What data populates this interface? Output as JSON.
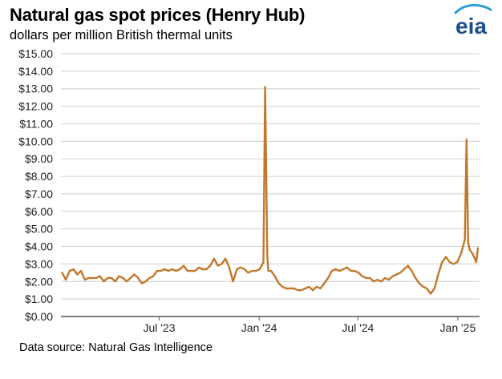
{
  "header": {
    "title": "Natural gas spot prices (Henry Hub)",
    "subtitle": "dollars per million British thermal units",
    "logo_text": "eia"
  },
  "footer": {
    "source": "Data source: Natural Gas Intelligence"
  },
  "colors": {
    "series": "#c1782a",
    "grid": "#cfcfcf",
    "logo_text": "#1a4f8a",
    "logo_swoosh": "#2d9fd8"
  },
  "chart_data": {
    "type": "line",
    "title": "Natural gas spot prices (Henry Hub)",
    "subtitle": "dollars per million British thermal units",
    "xlabel": "",
    "ylabel": "",
    "ylim": [
      0,
      15
    ],
    "xlim": [
      "2023-01-01",
      "2025-02-10"
    ],
    "grid": true,
    "legend": "none",
    "y_ticks": [
      "$0.00",
      "$1.00",
      "$2.00",
      "$3.00",
      "$4.00",
      "$5.00",
      "$6.00",
      "$7.00",
      "$8.00",
      "$9.00",
      "$10.00",
      "$11.00",
      "$12.00",
      "$13.00",
      "$14.00",
      "$15.00"
    ],
    "x_ticks": [
      {
        "date": "2023-07-01",
        "label": "Jul '23"
      },
      {
        "date": "2024-01-01",
        "label": "Jan '24"
      },
      {
        "date": "2024-07-01",
        "label": "Jul '24"
      },
      {
        "date": "2025-01-01",
        "label": "Jan '25"
      }
    ],
    "series": [
      {
        "name": "",
        "x": [
          "2023-01-03",
          "2023-01-10",
          "2023-01-17",
          "2023-01-24",
          "2023-01-31",
          "2023-02-07",
          "2023-02-14",
          "2023-02-21",
          "2023-02-28",
          "2023-03-07",
          "2023-03-14",
          "2023-03-21",
          "2023-03-28",
          "2023-04-04",
          "2023-04-11",
          "2023-04-18",
          "2023-04-25",
          "2023-05-02",
          "2023-05-09",
          "2023-05-16",
          "2023-05-23",
          "2023-05-30",
          "2023-06-06",
          "2023-06-13",
          "2023-06-20",
          "2023-06-27",
          "2023-07-04",
          "2023-07-11",
          "2023-07-18",
          "2023-07-25",
          "2023-08-01",
          "2023-08-08",
          "2023-08-15",
          "2023-08-22",
          "2023-08-29",
          "2023-09-05",
          "2023-09-12",
          "2023-09-19",
          "2023-09-26",
          "2023-10-03",
          "2023-10-10",
          "2023-10-17",
          "2023-10-24",
          "2023-10-31",
          "2023-11-07",
          "2023-11-14",
          "2023-11-21",
          "2023-11-28",
          "2023-12-05",
          "2023-12-12",
          "2023-12-19",
          "2023-12-26",
          "2024-01-02",
          "2024-01-09",
          "2024-01-12",
          "2024-01-16",
          "2024-01-18",
          "2024-01-23",
          "2024-01-30",
          "2024-02-06",
          "2024-02-13",
          "2024-02-20",
          "2024-02-27",
          "2024-03-05",
          "2024-03-12",
          "2024-03-19",
          "2024-03-26",
          "2024-04-02",
          "2024-04-09",
          "2024-04-16",
          "2024-04-23",
          "2024-04-30",
          "2024-05-07",
          "2024-05-14",
          "2024-05-21",
          "2024-05-28",
          "2024-06-04",
          "2024-06-11",
          "2024-06-18",
          "2024-06-25",
          "2024-07-02",
          "2024-07-09",
          "2024-07-16",
          "2024-07-23",
          "2024-07-30",
          "2024-08-06",
          "2024-08-13",
          "2024-08-20",
          "2024-08-27",
          "2024-09-03",
          "2024-09-10",
          "2024-09-17",
          "2024-09-24",
          "2024-10-01",
          "2024-10-08",
          "2024-10-15",
          "2024-10-22",
          "2024-10-29",
          "2024-11-05",
          "2024-11-12",
          "2024-11-19",
          "2024-11-26",
          "2024-12-03",
          "2024-12-10",
          "2024-12-17",
          "2024-12-24",
          "2024-12-31",
          "2025-01-07",
          "2025-01-14",
          "2025-01-17",
          "2025-01-20",
          "2025-01-23",
          "2025-01-28",
          "2025-02-04",
          "2025-02-07"
        ],
        "values": [
          2.5,
          2.1,
          2.6,
          2.7,
          2.4,
          2.6,
          2.1,
          2.2,
          2.2,
          2.2,
          2.3,
          2.0,
          2.2,
          2.2,
          2.0,
          2.3,
          2.2,
          2.0,
          2.2,
          2.4,
          2.2,
          1.9,
          2.0,
          2.2,
          2.3,
          2.6,
          2.6,
          2.7,
          2.6,
          2.7,
          2.6,
          2.7,
          2.9,
          2.6,
          2.6,
          2.6,
          2.8,
          2.7,
          2.7,
          2.9,
          3.3,
          2.9,
          3.0,
          3.3,
          2.8,
          2.0,
          2.7,
          2.8,
          2.7,
          2.5,
          2.6,
          2.6,
          2.7,
          3.1,
          13.1,
          3.5,
          2.6,
          2.6,
          2.3,
          1.9,
          1.7,
          1.6,
          1.6,
          1.6,
          1.5,
          1.5,
          1.6,
          1.7,
          1.5,
          1.7,
          1.6,
          1.9,
          2.2,
          2.6,
          2.7,
          2.6,
          2.7,
          2.8,
          2.6,
          2.6,
          2.5,
          2.3,
          2.2,
          2.2,
          2.0,
          2.1,
          2.0,
          2.2,
          2.1,
          2.3,
          2.4,
          2.5,
          2.7,
          2.9,
          2.6,
          2.2,
          1.9,
          1.7,
          1.6,
          1.3,
          1.6,
          2.4,
          3.1,
          3.4,
          3.1,
          3.0,
          3.1,
          3.6,
          4.4,
          10.1,
          4.2,
          3.8,
          3.6,
          3.1,
          3.9
        ]
      }
    ]
  }
}
